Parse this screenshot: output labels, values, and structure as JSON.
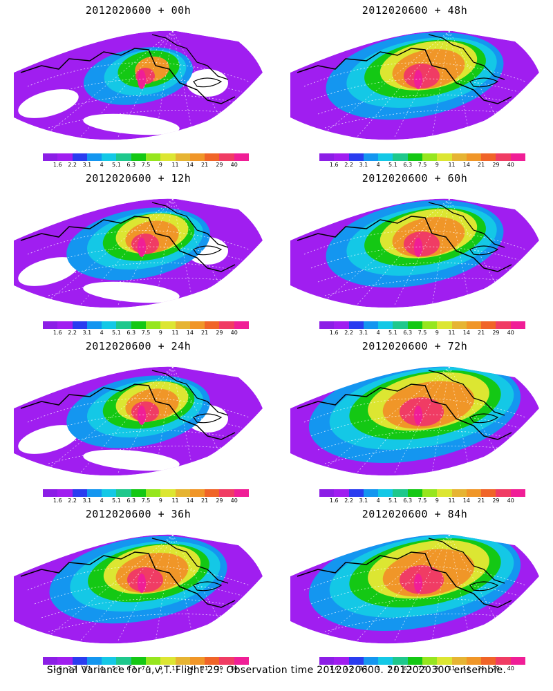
{
  "panels": [
    {
      "title": "2012020600 + 00h",
      "level": 0
    },
    {
      "title": "2012020600 + 48h",
      "level": 2
    },
    {
      "title": "2012020600 + 12h",
      "level": 1
    },
    {
      "title": "2012020600 + 60h",
      "level": 2
    },
    {
      "title": "2012020600 + 24h",
      "level": 1
    },
    {
      "title": "2012020600 + 72h",
      "level": 3
    },
    {
      "title": "2012020600 + 36h",
      "level": 2
    },
    {
      "title": "2012020600 + 84h",
      "level": 3
    }
  ],
  "colorbar": {
    "labels": [
      "1.6",
      "2.2",
      "3.1",
      "4",
      "5.1",
      "6.3",
      "7.5",
      "9",
      "11",
      "14",
      "21",
      "29",
      "40"
    ],
    "colors": [
      "#8c1ee6",
      "#a01ef0",
      "#2a3cf0",
      "#1496f0",
      "#14c8e6",
      "#1ec88c",
      "#14c814",
      "#96e61e",
      "#dce632",
      "#e6b432",
      "#f09628",
      "#f06428",
      "#f03c64",
      "#f01e96"
    ]
  },
  "footer": "Signal Variance for u,v,T. Flight 29. Observation time 2012020600. 2012020300 ensemble."
}
